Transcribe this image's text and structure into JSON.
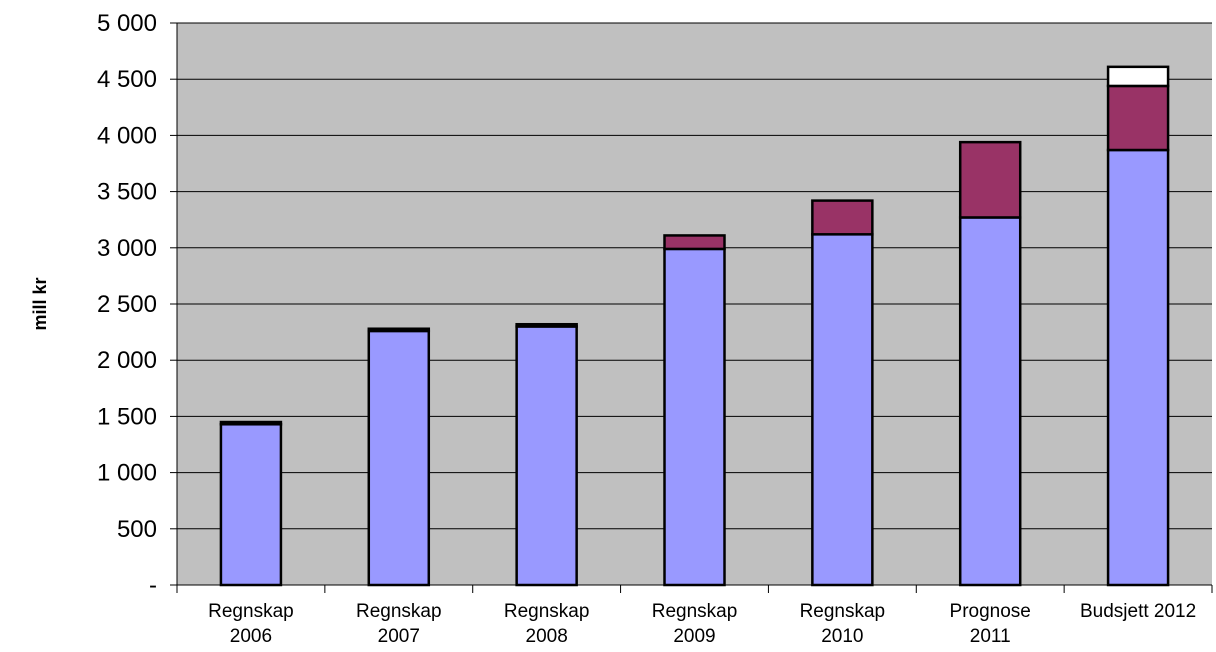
{
  "chart_data": {
    "type": "bar",
    "stacked": true,
    "title": "",
    "xlabel": "",
    "ylabel": "mill kr",
    "ylim": [
      0,
      5000
    ],
    "yticks": [
      0,
      500,
      1000,
      1500,
      2000,
      2500,
      3000,
      3500,
      4000,
      4500,
      5000
    ],
    "ytick_labels": [
      "-",
      "500",
      "1 000",
      "1 500",
      "2 000",
      "2 500",
      "3 000",
      "3 500",
      "4 000",
      "4 500",
      "5 000"
    ],
    "grid": true,
    "categories": [
      [
        "Regnskap",
        "2006"
      ],
      [
        "Regnskap",
        "2007"
      ],
      [
        "Regnskap",
        "2008"
      ],
      [
        "Regnskap",
        "2009"
      ],
      [
        "Regnskap",
        "2010"
      ],
      [
        "Prognose",
        "2011"
      ],
      [
        "Budsjett 2012"
      ]
    ],
    "series": [
      {
        "color": "#9999ff",
        "values": [
          1430,
          2260,
          2300,
          2990,
          3120,
          3270,
          3870
        ]
      },
      {
        "color": "#993366",
        "values": [
          20,
          20,
          20,
          120,
          300,
          670,
          570
        ]
      },
      {
        "color": "#ffffff",
        "values": [
          0,
          0,
          0,
          0,
          0,
          0,
          170
        ]
      }
    ],
    "colors": {
      "plot_background": "#c0c0c0",
      "gridline": "#000000",
      "bar_outline": "#000000"
    }
  }
}
